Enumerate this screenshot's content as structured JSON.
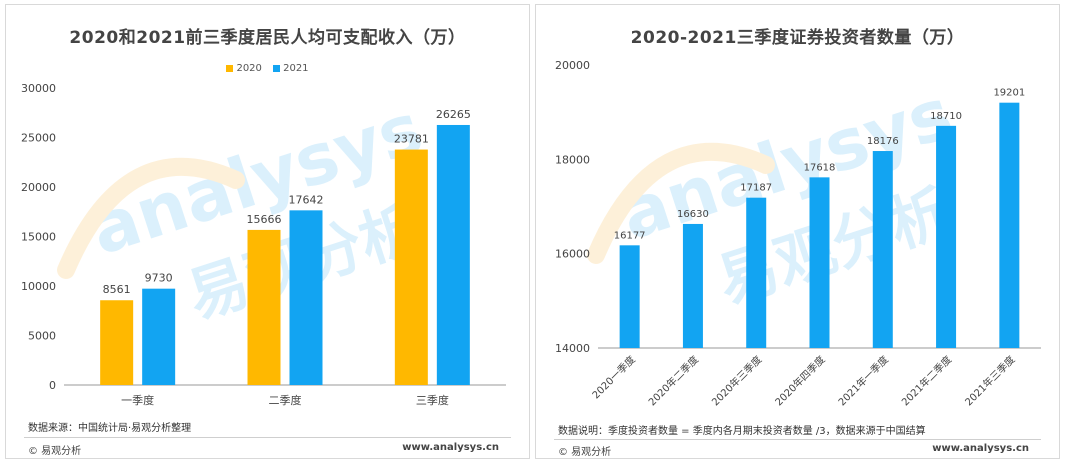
{
  "colors": {
    "y2020": "#FFB800",
    "y2021": "#12A4F2",
    "watermark_orange": "#F7A81B",
    "watermark_blue": "#29A9F0"
  },
  "watermark": {
    "latin": "analysys",
    "cjk": "易观分析"
  },
  "left": {
    "title": "2020和2021前三季度居民人均可支配收入（万）",
    "legend": [
      "2020",
      "2021"
    ],
    "source": "数据来源：中国统计局·易观分析整理",
    "footer_brand": "© 易观分析",
    "footer_url": "www.analysys.cn"
  },
  "right": {
    "title": "2020-2021三季度证券投资者数量（万）",
    "source": "数据说明：季度投资者数量 = 季度内各月期末投资者数量 /3，数据来源于中国结算",
    "footer_brand": "© 易观分析",
    "footer_url": "www.analysys.cn"
  },
  "chart_data": [
    {
      "type": "bar",
      "title": "2020和2021前三季度居民人均可支配收入（万）",
      "categories": [
        "一季度",
        "二季度",
        "三季度"
      ],
      "series": [
        {
          "name": "2020",
          "values": [
            8561,
            15666,
            23781
          ]
        },
        {
          "name": "2021",
          "values": [
            9730,
            17642,
            26265
          ]
        }
      ],
      "ylim": [
        0,
        30000
      ],
      "yticks": [
        0,
        5000,
        10000,
        15000,
        20000,
        25000,
        30000
      ],
      "grid": false,
      "legend": "top-center"
    },
    {
      "type": "bar",
      "title": "2020-2021三季度证券投资者数量（万）",
      "categories": [
        "2020一季度",
        "2020年二季度",
        "2020年三季度",
        "2020年四季度",
        "2021年一季度",
        "2021年二季度",
        "2021年三季度"
      ],
      "values": [
        16177,
        16630,
        17187,
        17618,
        18176,
        18710,
        19201
      ],
      "ylim": [
        14000,
        20000
      ],
      "yticks": [
        14000,
        16000,
        18000,
        20000
      ],
      "grid": false,
      "legend": "none"
    }
  ]
}
